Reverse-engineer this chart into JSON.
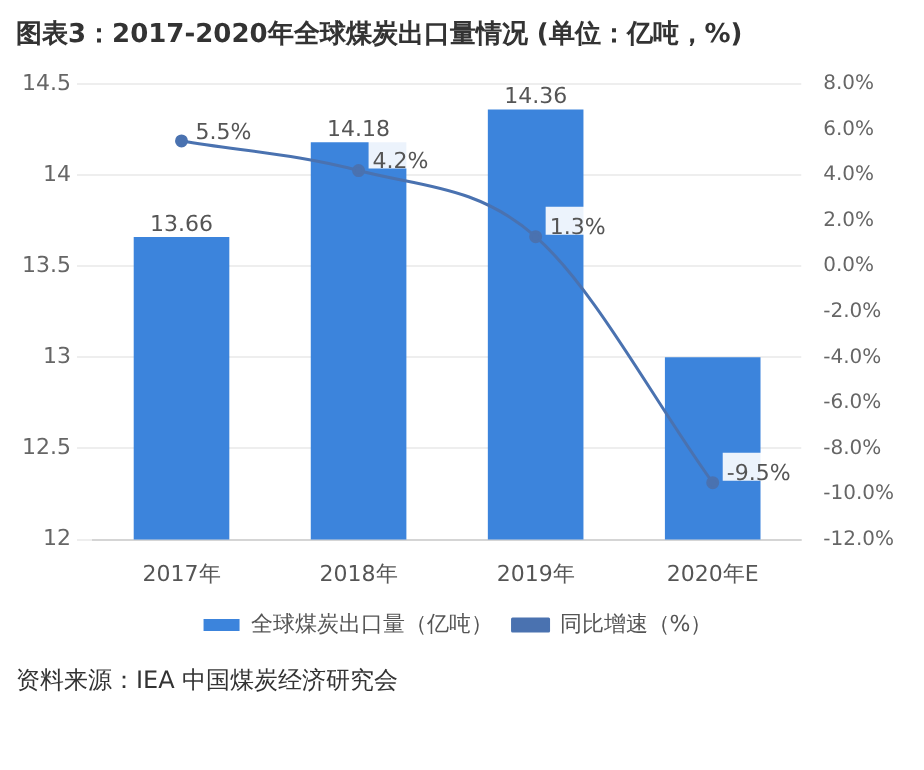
{
  "chart_data": {
    "type": "bar",
    "title": "图表3：2017-2020年全球煤炭出口量情况 (单位：亿吨，%)",
    "categories": [
      "2017年",
      "2018年",
      "2019年",
      "2020年E"
    ],
    "series": [
      {
        "name": "全球煤炭出口量（亿吨）",
        "color": "#3c84dc",
        "values": [
          13.66,
          14.18,
          14.36,
          13.0
        ],
        "value_labels": [
          "13.66",
          "14.18",
          "14.36",
          null
        ]
      },
      {
        "name": "同比增速（%）",
        "type": "line",
        "axis": "y2",
        "color": "#4a72b0",
        "values": [
          5.5,
          4.2,
          1.3,
          -9.5
        ],
        "value_labels": [
          "5.5%",
          "4.2%",
          "1.3%",
          "-9.5%"
        ]
      }
    ],
    "ylim": [
      12,
      14.5
    ],
    "yticks": [
      12,
      12.5,
      13,
      13.5,
      14,
      14.5
    ],
    "y2lim": [
      -12,
      8
    ],
    "y2ticks": [
      {
        "value": -12,
        "label": "-12.0%"
      },
      {
        "value": -10,
        "label": "-10.0%"
      },
      {
        "value": -8,
        "label": "-8.0%"
      },
      {
        "value": -6,
        "label": "-6.0%"
      },
      {
        "value": -4,
        "label": "-4.0%"
      },
      {
        "value": -2,
        "label": "-2.0%"
      },
      {
        "value": 0,
        "label": "0.0%"
      },
      {
        "value": 2,
        "label": "2.0%"
      },
      {
        "value": 4,
        "label": "4.0%"
      },
      {
        "value": 6,
        "label": "6.0%"
      },
      {
        "value": 8,
        "label": "8.0%"
      }
    ],
    "grid": "y",
    "legend": "bottom",
    "marker": "circle",
    "line_style": "solid",
    "annotations": [
      "资料来源：IEA 中国煤炭经济研究会"
    ]
  }
}
